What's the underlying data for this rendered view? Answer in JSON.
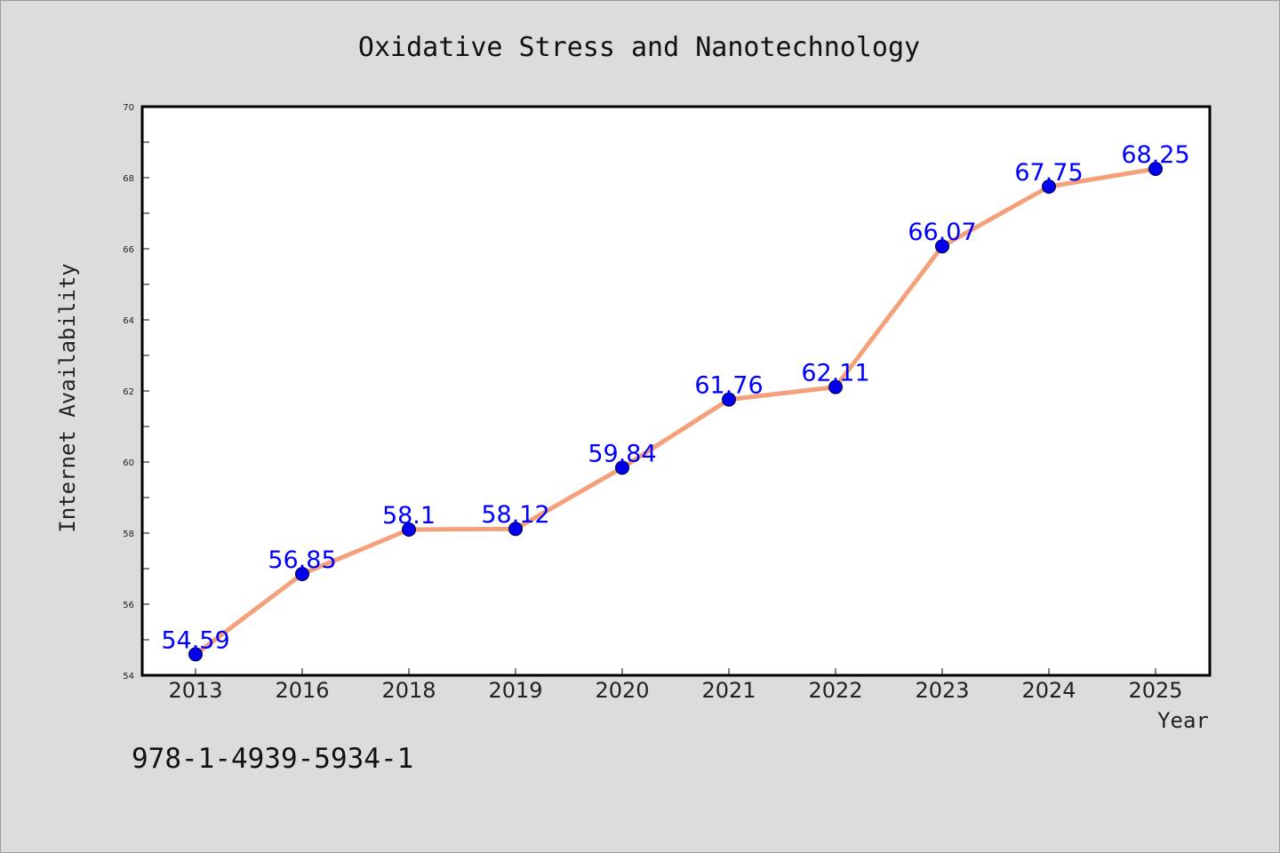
{
  "isbn": "978-1-4939-5934-1",
  "colors": {
    "background": "#dcdcdc",
    "plot_background": "#ffffff",
    "line": "#f4a07a",
    "marker": "#0000ee",
    "data_label": "#0000ff"
  },
  "chart_data": {
    "type": "line",
    "title": "Oxidative Stress and Nanotechnology",
    "xlabel": "Year",
    "ylabel": "Internet Availability",
    "categories": [
      "2013",
      "2016",
      "2018",
      "2019",
      "2020",
      "2021",
      "2022",
      "2023",
      "2024",
      "2025"
    ],
    "series": [
      {
        "values": [
          54.59,
          56.85,
          58.1,
          58.12,
          59.84,
          61.76,
          62.11,
          66.07,
          67.75,
          68.25
        ],
        "labels": [
          "54.59",
          "56.85",
          "58.1",
          "58.12",
          "59.84",
          "61.76",
          "62.11",
          "66.07",
          "67.75",
          "68.25"
        ]
      }
    ],
    "ylim": [
      54,
      70
    ],
    "yticks": [
      54,
      56,
      58,
      60,
      62,
      64,
      66,
      68,
      70
    ],
    "grid": false,
    "legend": "none"
  }
}
